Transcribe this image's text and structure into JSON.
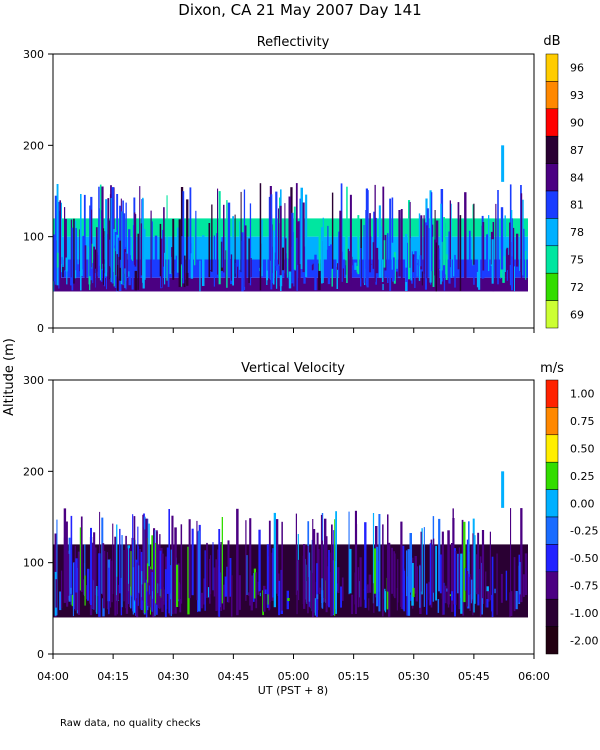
{
  "chart_data": {
    "type": "heatmap",
    "title": "Dixon, CA 21 May 2007  Day 141",
    "ylabel": "Altitude (m)",
    "xlabel": "UT  (PST + 8)",
    "footnote": "Raw data, no quality checks",
    "xrange_minutes": [
      0,
      120
    ],
    "x_tick_labels": [
      "04:00",
      "04:15",
      "04:30",
      "04:45",
      "05:00",
      "05:15",
      "05:30",
      "05:45",
      "06:00"
    ],
    "x_tick_minutes": [
      0,
      15,
      30,
      45,
      60,
      75,
      90,
      105,
      120
    ],
    "ylim": [
      0,
      300
    ],
    "y_tick_values": [
      0,
      100,
      200,
      300
    ],
    "y_tick_labels": [
      "0",
      "100",
      "200",
      "300"
    ],
    "panels": [
      {
        "id": "reflectivity",
        "title": "Reflectivity",
        "units": "dB",
        "colorbar_labels": [
          "96",
          "93",
          "90",
          "87",
          "84",
          "81",
          "78",
          "75",
          "72",
          "69"
        ],
        "colorbar_colors": [
          "#ffcc00",
          "#ff8800",
          "#ff0000",
          "#2a0033",
          "#4b0082",
          "#1a3cff",
          "#00b0ff",
          "#00e6a0",
          "#33dd00",
          "#ccff33"
        ],
        "signal_base_m": 40,
        "signal_main_top_m": 120,
        "signal_top_m": 140
      },
      {
        "id": "vertical-velocity",
        "title": "Vertical Velocity",
        "units": "m/s",
        "colorbar_labels": [
          "1.00",
          "0.75",
          "0.50",
          "0.25",
          "0.00",
          "-0.25",
          "-0.50",
          "-0.75",
          "-1.00",
          "-2.00"
        ],
        "colorbar_colors": [
          "#ff2200",
          "#ff8800",
          "#ffee00",
          "#33dd00",
          "#00b0ff",
          "#1a6cff",
          "#2222ff",
          "#4b0082",
          "#2a0033",
          "#220011"
        ],
        "signal_base_m": 40,
        "signal_main_top_m": 120,
        "signal_top_m": 140
      }
    ]
  }
}
